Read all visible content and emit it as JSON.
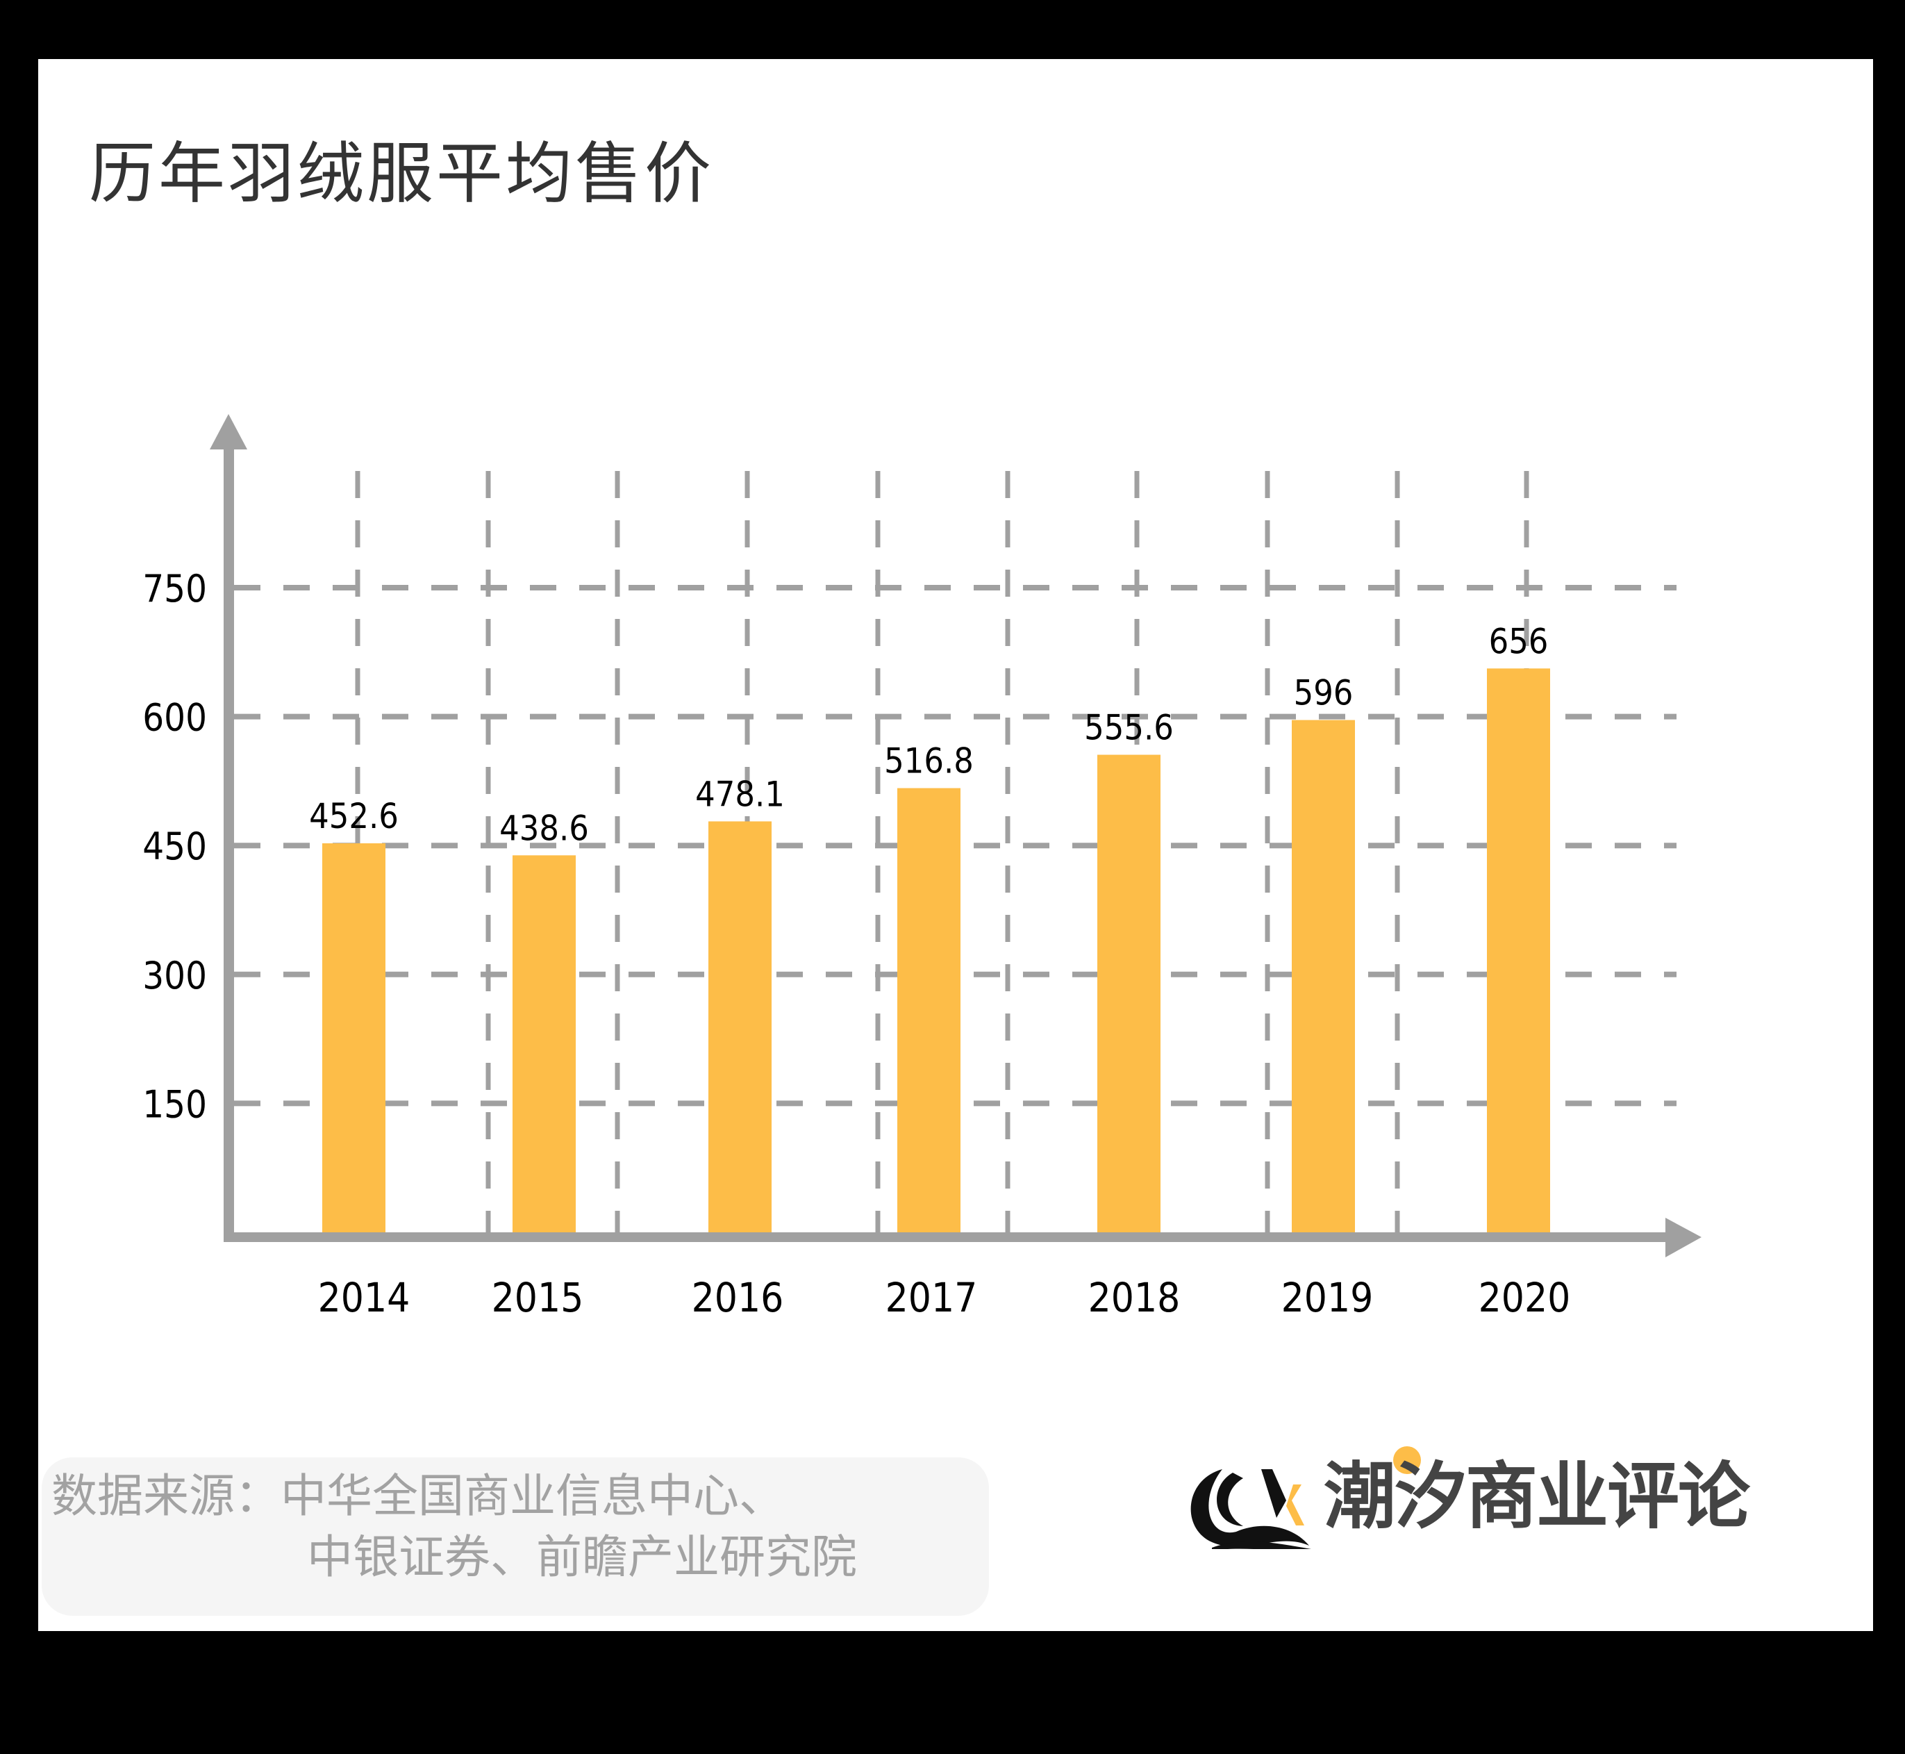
{
  "title": "历年羽绒服平均售价",
  "chart_data": {
    "type": "bar",
    "title": "历年羽绒服平均售价",
    "xlabel": "",
    "ylabel": "",
    "categories": [
      "2014",
      "2015",
      "2016",
      "2017",
      "2018",
      "2019",
      "2020"
    ],
    "values": [
      452.6,
      438.6,
      478.1,
      516.8,
      555.6,
      596,
      656
    ],
    "value_labels": [
      "452.6",
      "438.6",
      "478.1",
      "516.8",
      "555.6",
      "596",
      "656"
    ],
    "yticks": [
      "150",
      "300",
      "450",
      "600",
      "750"
    ],
    "ylim": [
      0,
      750
    ],
    "grid": true,
    "legend": null,
    "bar_color": "#FDBD48",
    "axis_color": "#A0A0A0"
  },
  "source": {
    "line1": "数据来源：中华全国商业信息中心、",
    "line2": "中银证券、前瞻产业研究院"
  },
  "brand": {
    "name": "潮汐商业评论",
    "mark": "CX",
    "accent": "#FDBD48",
    "text_color": "#444444"
  }
}
